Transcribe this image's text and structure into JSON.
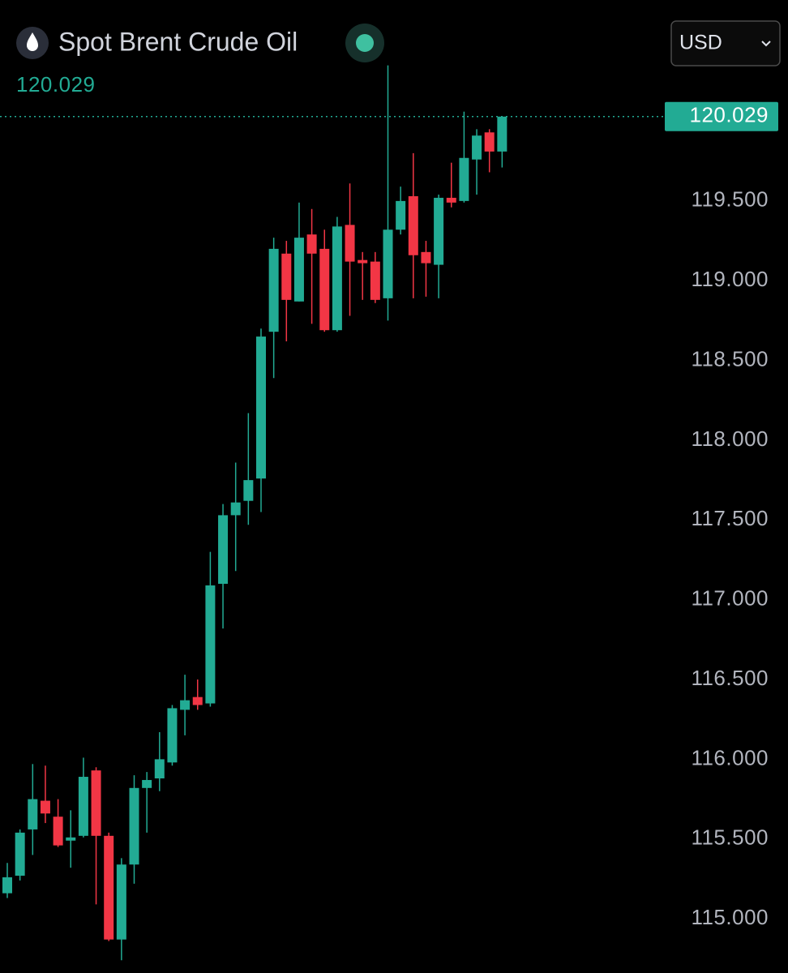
{
  "chart_data": {
    "type": "candlestick",
    "title": "Spot Brent Crude Oil",
    "currency": "USD",
    "last_price": 120.029,
    "up_color": "#22ab94",
    "down_color": "#f23645",
    "open": [
      115.16,
      115.27,
      115.56,
      115.74,
      115.64,
      115.49,
      115.52,
      115.93,
      115.52,
      114.87,
      115.34,
      115.82,
      115.88,
      115.98,
      116.31,
      116.39,
      116.35,
      117.1,
      117.53,
      117.62,
      117.76,
      118.68,
      119.17,
      118.87,
      119.29,
      119.2,
      118.69,
      119.35,
      119.13,
      119.12,
      118.89,
      119.32,
      119.53,
      119.18,
      119.1,
      119.52,
      119.5,
      119.76,
      119.93,
      119.81
    ],
    "high": [
      115.35,
      115.56,
      115.97,
      115.96,
      115.75,
      115.68,
      116.01,
      115.95,
      115.54,
      115.38,
      115.9,
      115.92,
      116.17,
      116.34,
      116.53,
      116.5,
      117.3,
      117.6,
      117.86,
      118.17,
      118.7,
      119.27,
      119.25,
      119.49,
      119.45,
      119.32,
      119.4,
      119.61,
      119.18,
      119.18,
      120.35,
      119.59,
      119.8,
      119.25,
      119.54,
      119.74,
      120.06,
      119.95,
      119.95,
      120.029
    ],
    "low": [
      115.13,
      115.24,
      115.4,
      115.6,
      115.45,
      115.32,
      115.51,
      115.09,
      114.86,
      114.74,
      115.22,
      115.54,
      115.8,
      115.96,
      116.15,
      116.31,
      116.33,
      116.82,
      117.18,
      117.47,
      117.55,
      118.39,
      118.62,
      118.87,
      118.73,
      118.68,
      118.68,
      118.78,
      118.88,
      118.86,
      118.75,
      119.29,
      118.89,
      118.9,
      118.89,
      119.46,
      119.49,
      119.54,
      119.68,
      119.71
    ],
    "close": [
      115.26,
      115.54,
      115.75,
      115.66,
      115.46,
      115.51,
      115.89,
      115.52,
      114.87,
      115.34,
      115.82,
      115.87,
      116.0,
      116.32,
      116.37,
      116.34,
      117.09,
      117.53,
      117.61,
      117.75,
      118.65,
      119.2,
      118.88,
      119.27,
      119.17,
      118.69,
      119.34,
      119.12,
      119.11,
      118.88,
      119.32,
      119.5,
      119.16,
      119.11,
      119.52,
      119.49,
      119.77,
      119.91,
      119.81,
      120.029
    ],
    "ylim": [
      114.66,
      120.76
    ],
    "yticks": [
      {
        "value": 115,
        "label": "115.000"
      },
      {
        "value": 115.5,
        "label": "115.500"
      },
      {
        "value": 116,
        "label": "116.000"
      },
      {
        "value": 116.5,
        "label": "116.500"
      },
      {
        "value": 117,
        "label": "117.000"
      },
      {
        "value": 117.5,
        "label": "117.500"
      },
      {
        "value": 118,
        "label": "118.000"
      },
      {
        "value": 118.5,
        "label": "118.500"
      },
      {
        "value": 119,
        "label": "119.000"
      },
      {
        "value": 119.5,
        "label": "119.500"
      }
    ]
  }
}
